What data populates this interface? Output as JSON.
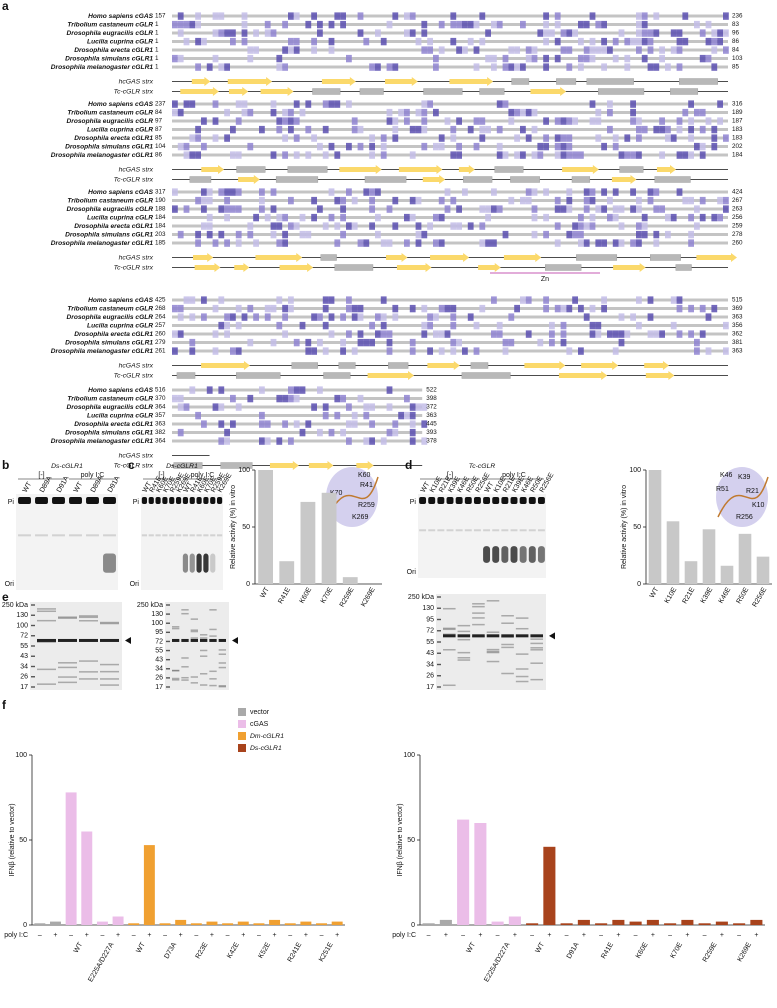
{
  "figure": {
    "panel_labels": [
      "a",
      "b",
      "c",
      "d",
      "e",
      "f"
    ],
    "alignment": {
      "blocks": [
        {
          "rows": [
            {
              "name": "Homo sapiens cGAS",
              "start": 157,
              "end": 236
            },
            {
              "name": "Tribolium castaneum cGLR",
              "start": 1,
              "end": 83
            },
            {
              "name": "Drosophila eugracilis cGLR",
              "start": 1,
              "end": 96
            },
            {
              "name": "Lucilia cuprina cGLR",
              "start": 1,
              "end": 86
            },
            {
              "name": "Drosophila erecta cGLR1",
              "start": 1,
              "end": 84
            },
            {
              "name": "Drosophila simulans cGLR1",
              "start": 1,
              "end": 103
            },
            {
              "name": "Drosophila melanogaster cGLR1",
              "start": 1,
              "end": 85
            }
          ]
        },
        {
          "rows": [
            {
              "name": "Homo sapiens cGAS",
              "start": 237,
              "end": 316
            },
            {
              "name": "Tribolium castaneum cGLR",
              "start": 84,
              "end": 189
            },
            {
              "name": "Drosophila eugracilis cGLR",
              "start": 97,
              "end": 187
            },
            {
              "name": "Lucilia cuprina cGLR",
              "start": 87,
              "end": 183
            },
            {
              "name": "Drosophila erecta cGLR1",
              "start": 85,
              "end": 183
            },
            {
              "name": "Drosophila simulans cGLR1",
              "start": 104,
              "end": 202
            },
            {
              "name": "Drosophila melanogaster cGLR1",
              "start": 86,
              "end": 184
            }
          ]
        },
        {
          "rows": [
            {
              "name": "Homo sapiens cGAS",
              "start": 317,
              "end": 424
            },
            {
              "name": "Tribolium castaneum cGLR",
              "start": 190,
              "end": 267
            },
            {
              "name": "Drosophila eugracilis cGLR",
              "start": 188,
              "end": 263
            },
            {
              "name": "Lucilia cuprina cGLR",
              "start": 184,
              "end": 256
            },
            {
              "name": "Drosophila erecta cGLR1",
              "start": 184,
              "end": 259
            },
            {
              "name": "Drosophila simulans cGLR1",
              "start": 203,
              "end": 278
            },
            {
              "name": "Drosophila melanogaster cGLR1",
              "start": 185,
              "end": 260
            }
          ]
        },
        {
          "rows": [
            {
              "name": "Homo sapiens cGAS",
              "start": 425,
              "end": 515
            },
            {
              "name": "Tribolium castaneum cGLR",
              "start": 268,
              "end": 369
            },
            {
              "name": "Drosophila eugracilis cGLR",
              "start": 264,
              "end": 363
            },
            {
              "name": "Lucilia cuprina cGLR",
              "start": 257,
              "end": 356
            },
            {
              "name": "Drosophila erecta cGLR1",
              "start": 260,
              "end": 362
            },
            {
              "name": "Drosophila simulans cGLR1",
              "start": 279,
              "end": 381
            },
            {
              "name": "Drosophila melanogaster cGLR1",
              "start": 261,
              "end": 363
            }
          ]
        },
        {
          "rows": [
            {
              "name": "Homo sapiens cGAS",
              "start": 516,
              "end": 522
            },
            {
              "name": "Tribolium castaneum cGLR",
              "start": 370,
              "end": 398
            },
            {
              "name": "Drosophila eugracilis cGLR",
              "start": 364,
              "end": 372
            },
            {
              "name": "Lucilia cuprina cGLR",
              "start": 357,
              "end": 363
            },
            {
              "name": "Drosophila erecta cGLR1",
              "start": 363,
              "end": 445
            },
            {
              "name": "Drosophila simulans cGLR1",
              "start": 382,
              "end": 393
            },
            {
              "name": "Drosophila melanogaster cGLR1",
              "start": 364,
              "end": 378
            }
          ]
        }
      ],
      "structure_labels": [
        "hcGAS strx",
        "Tc-cGLR strx"
      ],
      "zn_label": "Zn"
    },
    "gel_b": {
      "title": "Ds-cGLR1",
      "groups": [
        "[-]",
        "poly I:C"
      ],
      "lanes": [
        "WT",
        "D89A",
        "D91A",
        "WT",
        "D89A",
        "D91A"
      ]
    },
    "gel_c": {
      "title": "Ds-cGLR1",
      "groups": [
        "[-]",
        "poly I:C"
      ],
      "lanes": [
        "WT",
        "R41E",
        "K60E",
        "K70E",
        "R259E",
        "K269E",
        "WT",
        "R41E",
        "K60E",
        "K70E",
        "R259E",
        "K269E"
      ]
    },
    "gel_d": {
      "title": "Tc-cGLR",
      "groups": [
        "[-]",
        "poly I:C"
      ],
      "lanes": [
        "WT",
        "K10E",
        "R21E",
        "K39E",
        "K46E",
        "R50E",
        "R256E",
        "WT",
        "K10E",
        "R21E",
        "K39E",
        "K46E",
        "R50E",
        "R256E"
      ]
    },
    "gel_marks": [
      "Pi",
      "Ori"
    ],
    "structure_c": [
      "K60",
      "R41",
      "K70",
      "R259",
      "K269"
    ],
    "structure_d": [
      "K46",
      "K39",
      "R51",
      "R21",
      "K10",
      "R256"
    ],
    "sds_e_left": {
      "markers": [
        "250 kDa",
        "130",
        "100",
        "72",
        "55",
        "43",
        "34",
        "26",
        "17"
      ],
      "lanes": 4
    },
    "sds_e_mid": {
      "markers": [
        "250 kDa",
        "130",
        "100",
        "95",
        "72",
        "55",
        "43",
        "34",
        "26",
        "17"
      ],
      "lanes": 6
    },
    "sds_d": {
      "markers": [
        "250 kDa",
        "130",
        "95",
        "72",
        "55",
        "43",
        "34",
        "26",
        "17"
      ],
      "lanes": 7
    },
    "poly_ic_label": "poly I:C"
  },
  "chart_data": [
    {
      "type": "bar",
      "ylabel": "Relative activity (%) in vitro",
      "categories": [
        "WT",
        "R41E",
        "K60E",
        "K70E",
        "R259E",
        "K269E"
      ],
      "values": [
        100,
        20,
        72,
        80,
        6,
        0
      ],
      "color": "#c8c8c8",
      "ylim": [
        0,
        100
      ],
      "yticks": [
        0,
        50,
        100
      ]
    },
    {
      "type": "bar",
      "ylabel": "Relative activity (%) in vitro",
      "categories": [
        "WT",
        "K10E",
        "R21E",
        "K39E",
        "K46E",
        "R50E",
        "R256E"
      ],
      "values": [
        100,
        55,
        20,
        48,
        16,
        44,
        24
      ],
      "color": "#c8c8c8",
      "ylim": [
        0,
        100
      ],
      "yticks": [
        0,
        50,
        100
      ]
    },
    {
      "type": "lanes",
      "ylabel": "IFNβ (relative to vector)",
      "categories": [
        null,
        null,
        null,
        "WT",
        null,
        "E225A/D227A",
        null,
        "WT",
        null,
        "D73A",
        null,
        "R23E",
        null,
        "K42E",
        null,
        "K52E",
        null,
        "R241E",
        null,
        "K251E"
      ],
      "poly_ic": [
        "–",
        "+",
        "–",
        "+",
        "–",
        "+",
        "–",
        "+",
        "–",
        "+",
        "–",
        "+",
        "–",
        "+",
        "–",
        "+",
        "–",
        "+",
        "–",
        "+"
      ],
      "series": [
        {
          "name": "vector",
          "color": "#a9a9a9",
          "values": [
            1,
            2,
            null,
            null,
            null,
            null,
            null,
            null,
            null,
            null,
            null,
            null,
            null,
            null,
            null,
            null,
            null,
            null,
            null,
            null
          ]
        },
        {
          "name": "cGAS",
          "color": "#ebbde8",
          "values": [
            null,
            null,
            78,
            55,
            2,
            5,
            null,
            null,
            null,
            null,
            null,
            null,
            null,
            null,
            null,
            null,
            null,
            null,
            null,
            null
          ]
        },
        {
          "name": "Dm-cGLR1",
          "color": "#f0a031",
          "values": [
            null,
            null,
            null,
            null,
            null,
            null,
            1,
            47,
            1,
            3,
            1,
            2,
            1,
            2,
            1,
            3,
            1,
            2,
            1,
            2
          ]
        }
      ],
      "ylim": [
        0,
        100
      ],
      "yticks": [
        0,
        50,
        100
      ]
    },
    {
      "type": "lanes",
      "ylabel": "IFNβ (relative to vector)",
      "categories": [
        null,
        null,
        null,
        "WT",
        null,
        "E225A/D227A",
        null,
        "WT",
        null,
        "D91A",
        null,
        "R41E",
        null,
        "K60E",
        null,
        "K70E",
        null,
        "R259E",
        null,
        "K269E"
      ],
      "poly_ic": [
        "–",
        "+",
        "–",
        "+",
        "–",
        "+",
        "–",
        "+",
        "–",
        "+",
        "–",
        "+",
        "–",
        "+",
        "–",
        "+",
        "–",
        "+",
        "–",
        "+"
      ],
      "series": [
        {
          "name": "vector",
          "color": "#a9a9a9",
          "values": [
            1,
            3,
            null,
            null,
            null,
            null,
            null,
            null,
            null,
            null,
            null,
            null,
            null,
            null,
            null,
            null,
            null,
            null,
            null,
            null
          ]
        },
        {
          "name": "cGAS",
          "color": "#ebbde8",
          "values": [
            null,
            null,
            62,
            60,
            2,
            5,
            null,
            null,
            null,
            null,
            null,
            null,
            null,
            null,
            null,
            null,
            null,
            null,
            null,
            null
          ]
        },
        {
          "name": "Ds-cGLR1",
          "color": "#a8431c",
          "values": [
            null,
            null,
            null,
            null,
            null,
            null,
            1,
            46,
            1,
            3,
            1,
            3,
            2,
            3,
            1,
            3,
            1,
            2,
            1,
            3
          ]
        }
      ],
      "ylim": [
        0,
        100
      ],
      "yticks": [
        0,
        50,
        100
      ]
    }
  ]
}
